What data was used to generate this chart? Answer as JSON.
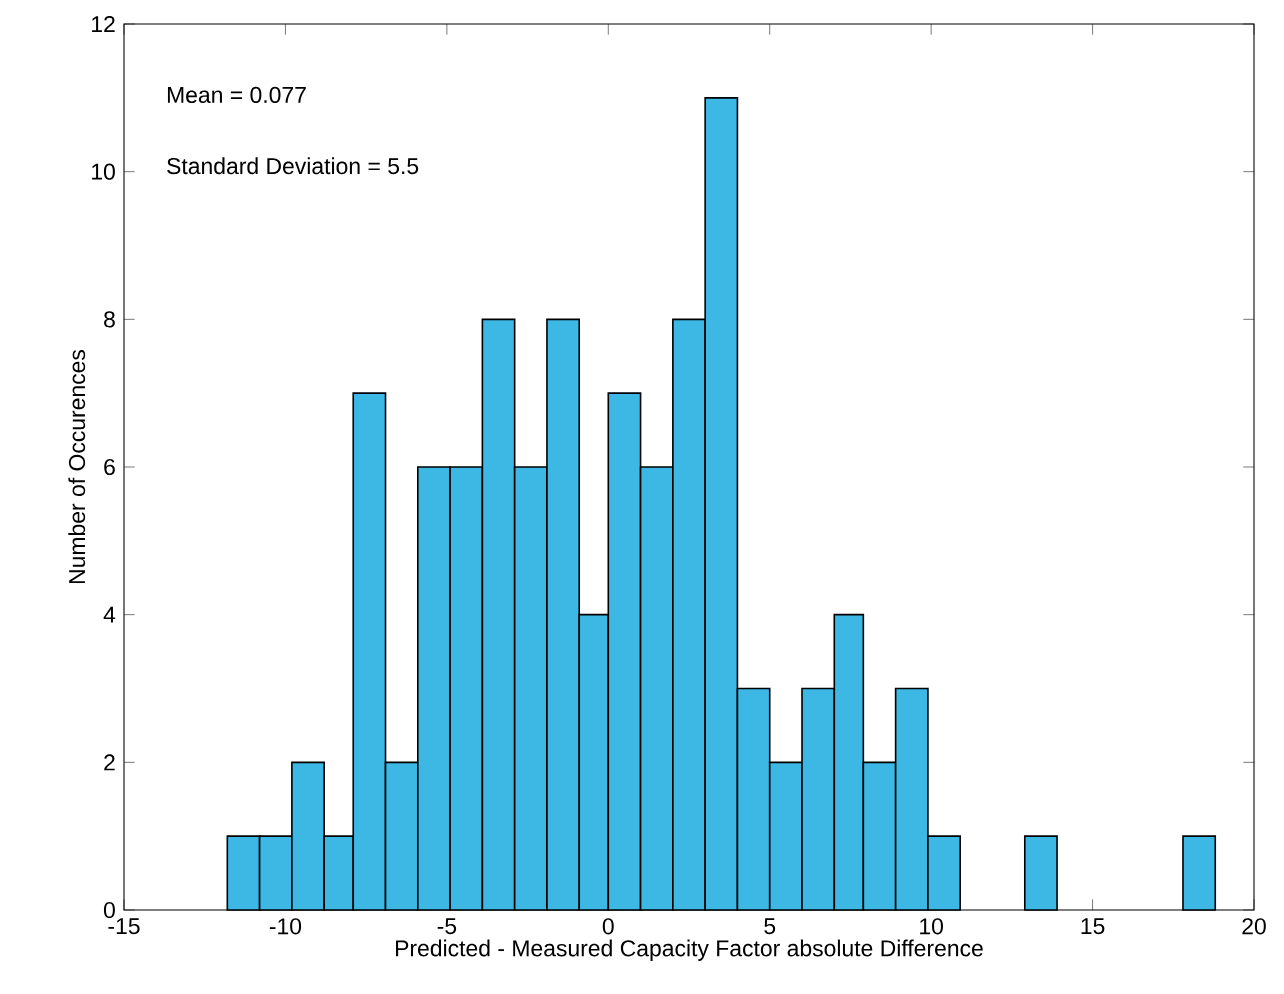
{
  "chart_data": {
    "type": "histogram",
    "xlabel": "Predicted - Measured Capacity Factor absolute Difference",
    "ylabel": "Number of Occurences",
    "annotations": [
      "Mean = 0.077",
      "Standard Deviation = 5.5"
    ],
    "bins": [
      -11.8,
      -10.8,
      -9.8,
      -8.8,
      -7.9,
      -6.9,
      -5.9,
      -4.9,
      -3.9,
      -2.9,
      -1.9,
      -0.9,
      0.0,
      1.0,
      2.0,
      3.0,
      4.0,
      5.0,
      6.0,
      7.0,
      7.9,
      8.9,
      9.9,
      10.9,
      12.9,
      13.9,
      17.8,
      18.8
    ],
    "values": [
      1,
      1,
      2,
      1,
      7,
      2,
      6,
      6,
      8,
      6,
      8,
      4,
      7,
      6,
      8,
      11,
      3,
      2,
      3,
      4,
      2,
      3,
      1,
      0,
      1,
      0,
      1
    ],
    "color": "#3db7e4",
    "xlim": [
      -15,
      20
    ],
    "xticks": [
      -15,
      -10,
      -5,
      0,
      5,
      10,
      15,
      20
    ],
    "ylim": [
      0,
      12
    ],
    "yticks": [
      0,
      2,
      4,
      6,
      8,
      10,
      12
    ],
    "grid": false
  }
}
